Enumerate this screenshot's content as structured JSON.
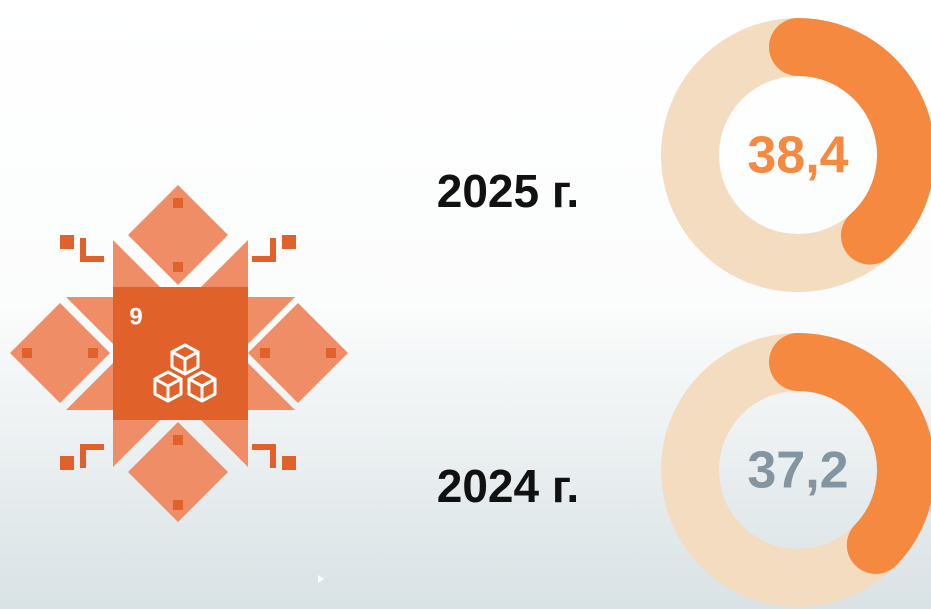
{
  "logo": {
    "label": "9"
  },
  "chart_data": [
    {
      "type": "donut",
      "title": "2025 г.",
      "values": [
        38.4
      ],
      "value_labels": [
        "38,4"
      ],
      "ylim": [
        0,
        100
      ],
      "color": "#f5893f",
      "track_color": "#f3dcc0",
      "label_color": "#f5893f"
    },
    {
      "type": "donut",
      "title": "2024 г.",
      "values": [
        37.2
      ],
      "value_labels": [
        "37,2"
      ],
      "ylim": [
        0,
        100
      ],
      "color": "#f5893f",
      "track_color": "#f3dcc0",
      "label_color": "#8395a1"
    }
  ]
}
